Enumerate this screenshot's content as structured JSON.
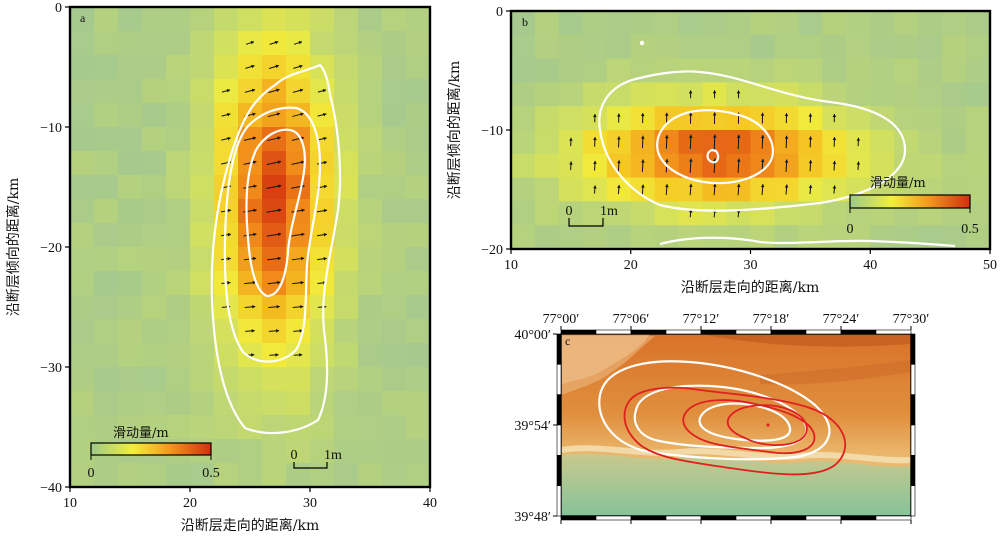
{
  "colors": {
    "background_grid": "#a8c896",
    "low": "#9cc98a",
    "mid": "#f2ef3a",
    "high": "#e14b12",
    "contour": "#ffffff",
    "contour_red": "#e02020",
    "frame": "#000000"
  },
  "chart_data": [
    {
      "panel": "a",
      "type": "heatmap",
      "xlabel": "沿断层走向的距离/km",
      "ylabel": "沿断层倾向的距离/km",
      "xlim": [
        10,
        40
      ],
      "ylim": [
        -40,
        0
      ],
      "x_ticks": [
        "10",
        "20",
        "30",
        "40"
      ],
      "y_ticks": [
        "0",
        "−10",
        "−20",
        "−30",
        "−40"
      ],
      "colorbar": {
        "title": "滑动量/m",
        "min": "0",
        "max": "0.5",
        "range": [
          0,
          0.5
        ]
      },
      "scale_bar": {
        "left": "0",
        "right": "1m"
      },
      "slip_patch": {
        "center_x": 27,
        "center_y": -16,
        "peak_slip": 0.45,
        "extent_x": [
          21,
          32
        ],
        "extent_y": [
          -35,
          -5
        ]
      },
      "contours": [
        "outer",
        "middle",
        "inner"
      ]
    },
    {
      "panel": "b",
      "type": "heatmap",
      "xlabel": "沿断层走向的距离/km",
      "ylabel": "沿断层倾向的距离/km",
      "xlim": [
        10,
        50
      ],
      "ylim": [
        -20,
        0
      ],
      "x_ticks": [
        "10",
        "20",
        "30",
        "40",
        "50"
      ],
      "y_ticks": [
        "0",
        "−10",
        "−20"
      ],
      "colorbar": {
        "title": "滑动量/m",
        "min": "0",
        "max": "0.5",
        "range": [
          0,
          0.5
        ]
      },
      "scale_bar": {
        "left": "0",
        "right": "1m"
      },
      "slip_patch": {
        "center_x": 27,
        "center_y": -12,
        "peak_slip": 0.42,
        "extent_x": [
          18,
          44
        ],
        "extent_y": [
          -17,
          -7
        ]
      },
      "contours": [
        "outer",
        "middle",
        "inner"
      ]
    },
    {
      "panel": "c",
      "type": "map",
      "lon_ticks": [
        "77°00′",
        "77°06′",
        "77°12′",
        "77°18′",
        "77°24′",
        "77°30′"
      ],
      "lat_ticks": [
        "40°00′",
        "39°54′",
        "39°48′"
      ],
      "lon_range": [
        77.0,
        77.5
      ],
      "lat_range": [
        39.8,
        40.0
      ],
      "contour_sets": [
        "white",
        "red"
      ]
    }
  ]
}
